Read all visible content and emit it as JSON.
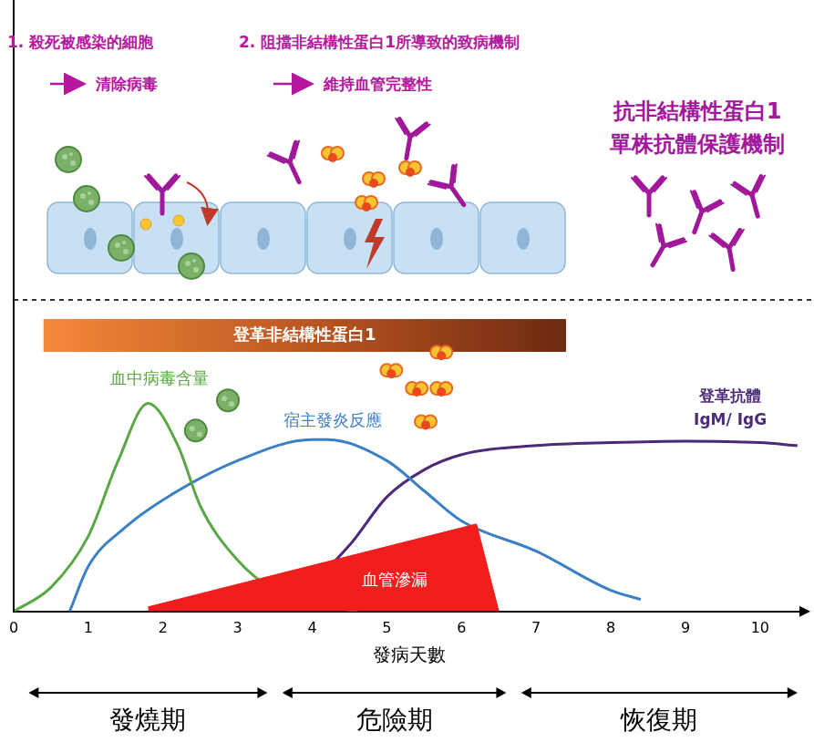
{
  "mechanism": {
    "items": [
      {
        "text": "1. 殺死被感染的細胞",
        "result": "清除病毒"
      },
      {
        "text": "2. 阻擋非結構性蛋白1所導致的致病機制",
        "result": "維持血管完整性"
      }
    ],
    "heading": [
      "抗非結構性蛋白1",
      "單株抗體保護機制"
    ]
  },
  "chart_data": {
    "type": "line",
    "x_title": "發病天數",
    "xlim": [
      0,
      10.6
    ],
    "xticks": [
      0,
      1,
      2,
      3,
      4,
      5,
      6,
      7,
      8,
      9,
      10
    ],
    "ylim": [
      0,
      100
    ],
    "tick_labels": "x",
    "grid": false,
    "band": {
      "name": "登革非結構性蛋白1",
      "start": 0.4,
      "end": 7.4
    },
    "series": [
      {
        "name": "血中病毒含量",
        "color": "#5aa845",
        "x": [
          0,
          0.5,
          1,
          1.4,
          1.8,
          2.2,
          2.5,
          3,
          3.5,
          4,
          4.6
        ],
        "values": [
          0,
          8,
          25,
          50,
          69,
          55,
          35,
          17,
          7,
          3,
          0
        ]
      },
      {
        "name": "宿主發炎反應",
        "color": "#3b7fc4",
        "x": [
          0.75,
          1,
          1.5,
          2,
          3,
          4,
          4.2,
          5,
          5.5,
          6,
          7,
          8,
          8.4
        ],
        "values": [
          0,
          15,
          28,
          37,
          50,
          57,
          57,
          50,
          40,
          30,
          20,
          7,
          4
        ]
      },
      {
        "name": "登革抗體 IgM/ IgG",
        "color": "#4b2a7a",
        "x": [
          3.2,
          4,
          4.5,
          5,
          5.5,
          6,
          7,
          8,
          9,
          10,
          10.5
        ],
        "values": [
          1,
          10,
          22,
          38,
          47,
          52,
          55,
          56,
          56.5,
          56,
          55
        ]
      },
      {
        "name": "血管滲漏",
        "type": "area",
        "color": "#f21d1d",
        "x": [
          1.8,
          6.2,
          6.5
        ],
        "values": [
          1.5,
          29,
          0
        ]
      }
    ],
    "phases": [
      {
        "name": "發燒期",
        "start": 0.2,
        "end": 3.4
      },
      {
        "name": "危險期",
        "start": 3.6,
        "end": 6.6
      },
      {
        "name": "恢復期",
        "start": 6.8,
        "end": 10.5
      }
    ]
  }
}
